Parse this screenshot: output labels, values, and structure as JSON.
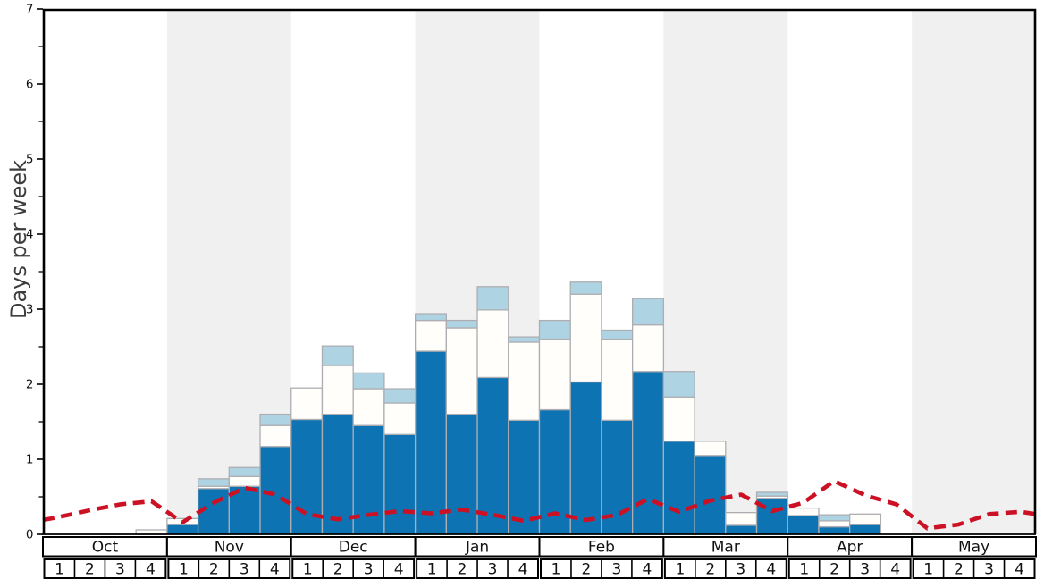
{
  "chart_data": {
    "type": "bar",
    "title": "",
    "ylabel": "Days per week",
    "ylim": [
      0,
      7
    ],
    "ytick_labels": [
      "0",
      "1",
      "2",
      "3",
      "4",
      "5",
      "6",
      "7"
    ],
    "grid": "off",
    "legend": "none",
    "months": [
      {
        "label": "Oct",
        "weeks": [
          "1",
          "2",
          "3",
          "4"
        ],
        "shaded": false
      },
      {
        "label": "Nov",
        "weeks": [
          "1",
          "2",
          "3",
          "4"
        ],
        "shaded": true
      },
      {
        "label": "Dec",
        "weeks": [
          "1",
          "2",
          "3",
          "4"
        ],
        "shaded": false
      },
      {
        "label": "Jan",
        "weeks": [
          "1",
          "2",
          "3",
          "4"
        ],
        "shaded": true
      },
      {
        "label": "Feb",
        "weeks": [
          "1",
          "2",
          "3",
          "4"
        ],
        "shaded": false
      },
      {
        "label": "Mar",
        "weeks": [
          "1",
          "2",
          "3",
          "4"
        ],
        "shaded": true
      },
      {
        "label": "Apr",
        "weeks": [
          "1",
          "2",
          "3",
          "4"
        ],
        "shaded": false
      },
      {
        "label": "May",
        "weeks": [
          "1",
          "2",
          "3",
          "4"
        ],
        "shaded": true
      }
    ],
    "series": [
      {
        "name": "dark-blue-segment",
        "color": "#0d73b3",
        "stack_top": [
          0,
          0,
          0,
          0,
          0.13,
          0.61,
          0.64,
          1.17,
          1.53,
          1.6,
          1.45,
          1.33,
          2.44,
          1.6,
          2.09,
          1.52,
          1.66,
          2.03,
          1.52,
          2.17,
          1.24,
          1.05,
          0.12,
          0.48,
          0.25,
          0.1,
          0.13,
          0,
          0,
          0,
          0,
          0
        ]
      },
      {
        "name": "white-segment",
        "color": "#fffefb",
        "stack_top": [
          0,
          0,
          0,
          0.06,
          0.21,
          0.64,
          0.77,
          1.45,
          1.95,
          2.25,
          1.94,
          1.75,
          2.85,
          2.75,
          2.99,
          2.56,
          2.6,
          3.2,
          2.6,
          2.79,
          1.83,
          1.24,
          0.29,
          0.51,
          0.35,
          0.18,
          0.27,
          0,
          0,
          0,
          0,
          0
        ]
      },
      {
        "name": "light-blue-segment",
        "color": "#aed3e2",
        "stack_top": [
          0,
          0,
          0,
          0.06,
          0.21,
          0.74,
          0.89,
          1.6,
          1.95,
          2.51,
          2.15,
          1.94,
          2.94,
          2.85,
          3.3,
          2.63,
          2.85,
          3.36,
          2.72,
          3.14,
          2.17,
          1.24,
          0.29,
          0.56,
          0.35,
          0.26,
          0.27,
          0,
          0,
          0,
          0,
          0
        ]
      }
    ],
    "line_series": {
      "name": "red-dashed-line",
      "color": "#cd1124",
      "dash": [
        13,
        7.5
      ],
      "stroke_width": 4.6,
      "values": [
        0.23,
        0.32,
        0.4,
        0.44,
        0.16,
        0.42,
        0.62,
        0.53,
        0.27,
        0.2,
        0.26,
        0.31,
        0.28,
        0.33,
        0.26,
        0.18,
        0.28,
        0.19,
        0.26,
        0.47,
        0.3,
        0.45,
        0.53,
        0.31,
        0.42,
        0.71,
        0.52,
        0.4,
        0.08,
        0.13,
        0.27,
        0.3
      ],
      "edge_start": 0.19,
      "edge_end": 0.27
    },
    "styles": {
      "plot_bg": "#ffffff",
      "band": "#f0f0f0",
      "frame": "#000000",
      "bar_border": "#aeaeb2",
      "tick_color": "#000000",
      "label_color": "#111111"
    }
  }
}
